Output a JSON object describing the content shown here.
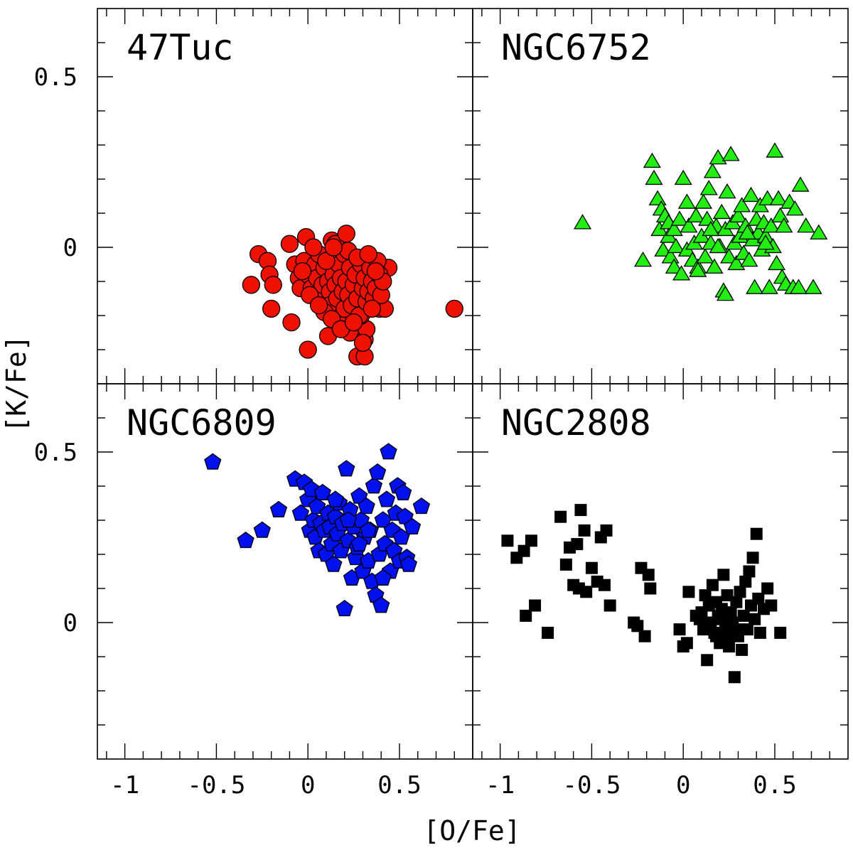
{
  "figure": {
    "xlabel": "[O/Fe]",
    "ylabel": "[K/Fe]"
  },
  "chart_data": [
    {
      "type": "scatter",
      "title": "47Tuc",
      "xlabel": "[O/Fe]",
      "ylabel": "[K/Fe]",
      "xlim": [
        -1.15,
        0.9
      ],
      "ylim": [
        -0.4,
        0.7
      ],
      "xticks": [
        "-1",
        "-0.5",
        "0",
        "0.5"
      ],
      "yticks": [
        "0",
        "0.5"
      ],
      "marker": "circle",
      "color": "#ee1100",
      "points": [
        [
          -0.27,
          -0.02
        ],
        [
          -0.31,
          -0.11
        ],
        [
          -0.22,
          -0.04
        ],
        [
          -0.21,
          -0.08
        ],
        [
          -0.19,
          -0.11
        ],
        [
          -0.2,
          -0.18
        ],
        [
          -0.1,
          0.01
        ],
        [
          -0.09,
          -0.22
        ],
        [
          -0.01,
          0.03
        ],
        [
          0.0,
          -0.3
        ],
        [
          0.13,
          0.02
        ],
        [
          0.15,
          0.01
        ],
        [
          0.21,
          0.04
        ],
        [
          0.8,
          -0.18
        ],
        [
          0.11,
          -0.26
        ],
        [
          0.23,
          -0.25
        ],
        [
          0.27,
          -0.32
        ],
        [
          0.31,
          -0.32
        ],
        [
          0.31,
          -0.27
        ],
        [
          0.32,
          -0.24
        ],
        [
          0.29,
          -0.2
        ],
        [
          0.39,
          -0.18
        ],
        [
          0.42,
          -0.18
        ],
        [
          0.44,
          -0.06
        ],
        [
          -0.07,
          -0.05
        ],
        [
          -0.05,
          -0.09
        ],
        [
          -0.04,
          -0.12
        ],
        [
          -0.02,
          -0.04
        ],
        [
          0.0,
          -0.08
        ],
        [
          0.02,
          -0.12
        ],
        [
          0.04,
          -0.05
        ],
        [
          0.05,
          -0.09
        ],
        [
          0.07,
          -0.15
        ],
        [
          0.08,
          -0.11
        ],
        [
          0.09,
          -0.06
        ],
        [
          0.11,
          -0.1
        ],
        [
          0.12,
          -0.13
        ],
        [
          0.12,
          -0.17
        ],
        [
          0.14,
          -0.08
        ],
        [
          0.15,
          -0.11
        ],
        [
          0.16,
          -0.15
        ],
        [
          0.16,
          -0.21
        ],
        [
          0.17,
          -0.05
        ],
        [
          0.18,
          -0.09
        ],
        [
          0.19,
          -0.13
        ],
        [
          0.2,
          -0.18
        ],
        [
          0.2,
          -0.02
        ],
        [
          0.21,
          -0.1
        ],
        [
          0.22,
          -0.14
        ],
        [
          0.23,
          -0.06
        ],
        [
          0.24,
          -0.17
        ],
        [
          0.25,
          -0.11
        ],
        [
          0.26,
          -0.08
        ],
        [
          0.27,
          -0.15
        ],
        [
          0.28,
          -0.2
        ],
        [
          0.29,
          -0.05
        ],
        [
          0.3,
          -0.12
        ],
        [
          0.31,
          -0.09
        ],
        [
          0.32,
          -0.16
        ],
        [
          0.33,
          -0.13
        ],
        [
          0.34,
          -0.06
        ],
        [
          0.35,
          -0.1
        ],
        [
          0.36,
          -0.15
        ],
        [
          0.37,
          -0.12
        ],
        [
          0.38,
          -0.04
        ],
        [
          0.39,
          -0.08
        ],
        [
          0.4,
          -0.14
        ],
        [
          0.41,
          -0.1
        ],
        [
          0.06,
          -0.02
        ],
        [
          0.03,
          0.0
        ],
        [
          0.09,
          -0.19
        ],
        [
          0.13,
          -0.21
        ],
        [
          0.18,
          -0.24
        ],
        [
          0.25,
          -0.22
        ],
        [
          0.3,
          -0.28
        ],
        [
          0.1,
          -0.04
        ],
        [
          0.22,
          -0.01
        ],
        [
          0.27,
          -0.03
        ],
        [
          0.33,
          -0.02
        ],
        [
          0.14,
          0.0
        ],
        [
          -0.03,
          -0.07
        ],
        [
          0.01,
          -0.14
        ],
        [
          0.06,
          -0.17
        ],
        [
          0.35,
          -0.18
        ],
        [
          0.37,
          -0.07
        ]
      ]
    },
    {
      "type": "scatter",
      "title": "NGC6752",
      "xlabel": "[O/Fe]",
      "ylabel": "[K/Fe]",
      "xlim": [
        -1.15,
        0.9
      ],
      "ylim": [
        -0.4,
        0.7
      ],
      "xticks": [
        "-1",
        "-0.5",
        "0",
        "0.5"
      ],
      "yticks": [
        "0",
        "0.5"
      ],
      "marker": "triangle",
      "color": "#22ee11",
      "points": [
        [
          -0.55,
          0.07
        ],
        [
          -0.22,
          -0.04
        ],
        [
          -0.17,
          0.25
        ],
        [
          -0.16,
          0.2
        ],
        [
          -0.14,
          0.14
        ],
        [
          -0.12,
          0.11
        ],
        [
          -0.13,
          0.05
        ],
        [
          -0.1,
          0.09
        ],
        [
          -0.11,
          -0.01
        ],
        [
          -0.08,
          0.07
        ],
        [
          -0.08,
          0.03
        ],
        [
          -0.07,
          -0.03
        ],
        [
          -0.05,
          0.05
        ],
        [
          -0.04,
          0.0
        ],
        [
          -0.05,
          -0.06
        ],
        [
          -0.02,
          0.08
        ],
        [
          0.0,
          0.2
        ],
        [
          -0.01,
          -0.08
        ],
        [
          0.02,
          0.13
        ],
        [
          0.02,
          -0.01
        ],
        [
          0.03,
          0.06
        ],
        [
          0.05,
          -0.04
        ],
        [
          0.06,
          0.01
        ],
        [
          0.07,
          0.09
        ],
        [
          0.08,
          -0.06
        ],
        [
          0.1,
          0.03
        ],
        [
          0.11,
          0.13
        ],
        [
          0.12,
          -0.03
        ],
        [
          0.13,
          0.08
        ],
        [
          0.14,
          0.17
        ],
        [
          0.15,
          0.01
        ],
        [
          0.16,
          0.22
        ],
        [
          0.17,
          -0.06
        ],
        [
          0.18,
          0.06
        ],
        [
          0.19,
          0.26
        ],
        [
          0.2,
          0.0
        ],
        [
          0.21,
          0.1
        ],
        [
          0.22,
          -0.13
        ],
        [
          0.23,
          0.05
        ],
        [
          0.24,
          0.16
        ],
        [
          0.25,
          -0.03
        ],
        [
          0.26,
          0.27
        ],
        [
          0.27,
          0.07
        ],
        [
          0.28,
          0.01
        ],
        [
          0.29,
          -0.05
        ],
        [
          0.3,
          0.09
        ],
        [
          0.31,
          0.03
        ],
        [
          0.32,
          0.12
        ],
        [
          0.33,
          -0.02
        ],
        [
          0.34,
          0.06
        ],
        [
          0.36,
          -0.04
        ],
        [
          0.37,
          0.15
        ],
        [
          0.38,
          0.02
        ],
        [
          0.39,
          -0.12
        ],
        [
          0.4,
          0.08
        ],
        [
          0.41,
          0.04
        ],
        [
          0.42,
          0.12
        ],
        [
          0.43,
          -0.01
        ],
        [
          0.44,
          0.07
        ],
        [
          0.45,
          0.03
        ],
        [
          0.46,
          0.14
        ],
        [
          0.47,
          -0.12
        ],
        [
          0.48,
          0.06
        ],
        [
          0.49,
          0.0
        ],
        [
          0.5,
          0.28
        ],
        [
          0.51,
          -0.05
        ],
        [
          0.52,
          0.14
        ],
        [
          0.53,
          0.09
        ],
        [
          0.54,
          -0.09
        ],
        [
          0.55,
          0.06
        ],
        [
          0.56,
          -0.11
        ],
        [
          0.58,
          0.13
        ],
        [
          0.6,
          -0.12
        ],
        [
          0.61,
          0.11
        ],
        [
          0.63,
          -0.12
        ],
        [
          0.64,
          0.18
        ],
        [
          0.67,
          0.06
        ],
        [
          0.71,
          -0.12
        ],
        [
          0.74,
          0.04
        ],
        [
          0.23,
          -0.14
        ],
        [
          0.15,
          0.05
        ],
        [
          0.08,
          -0.07
        ],
        [
          0.35,
          0.04
        ],
        [
          0.45,
          0.01
        ],
        [
          0.19,
          0.0
        ]
      ]
    },
    {
      "type": "scatter",
      "title": "NGC6809",
      "xlabel": "[O/Fe]",
      "ylabel": "[K/Fe]",
      "xlim": [
        -1.15,
        0.9
      ],
      "ylim": [
        -0.4,
        0.7
      ],
      "xticks": [
        "-1",
        "-0.5",
        "0",
        "0.5"
      ],
      "yticks": [
        "0",
        "0.5"
      ],
      "marker": "pentagon",
      "color": "#0011ee",
      "points": [
        [
          -0.52,
          0.47
        ],
        [
          -0.34,
          0.24
        ],
        [
          -0.25,
          0.27
        ],
        [
          -0.16,
          0.33
        ],
        [
          -0.07,
          0.42
        ],
        [
          -0.04,
          0.32
        ],
        [
          -0.02,
          0.41
        ],
        [
          0.0,
          0.36
        ],
        [
          0.01,
          0.27
        ],
        [
          0.02,
          0.39
        ],
        [
          0.03,
          0.3
        ],
        [
          0.04,
          0.25
        ],
        [
          0.05,
          0.34
        ],
        [
          0.06,
          0.21
        ],
        [
          0.07,
          0.29
        ],
        [
          0.08,
          0.38
        ],
        [
          0.09,
          0.27
        ],
        [
          0.1,
          0.2
        ],
        [
          0.11,
          0.32
        ],
        [
          0.12,
          0.28
        ],
        [
          0.13,
          0.23
        ],
        [
          0.14,
          0.17
        ],
        [
          0.15,
          0.31
        ],
        [
          0.16,
          0.26
        ],
        [
          0.17,
          0.35
        ],
        [
          0.18,
          0.21
        ],
        [
          0.19,
          0.29
        ],
        [
          0.2,
          0.04
        ],
        [
          0.21,
          0.45
        ],
        [
          0.22,
          0.24
        ],
        [
          0.23,
          0.33
        ],
        [
          0.24,
          0.13
        ],
        [
          0.25,
          0.28
        ],
        [
          0.26,
          0.19
        ],
        [
          0.27,
          0.22
        ],
        [
          0.28,
          0.37
        ],
        [
          0.29,
          0.3
        ],
        [
          0.3,
          0.15
        ],
        [
          0.31,
          0.25
        ],
        [
          0.32,
          0.34
        ],
        [
          0.33,
          0.18
        ],
        [
          0.34,
          0.27
        ],
        [
          0.35,
          0.12
        ],
        [
          0.36,
          0.4
        ],
        [
          0.37,
          0.08
        ],
        [
          0.38,
          0.44
        ],
        [
          0.39,
          0.2
        ],
        [
          0.4,
          0.05
        ],
        [
          0.41,
          0.3
        ],
        [
          0.42,
          0.23
        ],
        [
          0.43,
          0.36
        ],
        [
          0.44,
          0.5
        ],
        [
          0.45,
          0.15
        ],
        [
          0.46,
          0.27
        ],
        [
          0.47,
          0.21
        ],
        [
          0.48,
          0.32
        ],
        [
          0.49,
          0.4
        ],
        [
          0.5,
          0.18
        ],
        [
          0.51,
          0.25
        ],
        [
          0.52,
          0.38
        ],
        [
          0.53,
          0.31
        ],
        [
          0.54,
          0.19
        ],
        [
          0.55,
          0.17
        ],
        [
          0.57,
          0.28
        ],
        [
          0.62,
          0.34
        ],
        [
          0.28,
          0.23
        ],
        [
          0.15,
          0.36
        ],
        [
          0.22,
          0.3
        ],
        [
          0.33,
          0.27
        ],
        [
          0.41,
          0.13
        ]
      ]
    },
    {
      "type": "scatter",
      "title": "NGC2808",
      "xlabel": "[O/Fe]",
      "ylabel": "[K/Fe]",
      "xlim": [
        -1.15,
        0.9
      ],
      "ylim": [
        -0.4,
        0.7
      ],
      "xticks": [
        "-1",
        "-0.5",
        "0",
        "0.5"
      ],
      "yticks": [
        "0",
        "0.5"
      ],
      "marker": "square",
      "color": "#000000",
      "points": [
        [
          -0.96,
          0.24
        ],
        [
          -0.91,
          0.19
        ],
        [
          -0.87,
          0.21
        ],
        [
          -0.83,
          0.24
        ],
        [
          -0.86,
          0.02
        ],
        [
          -0.81,
          0.05
        ],
        [
          -0.74,
          -0.03
        ],
        [
          -0.67,
          0.31
        ],
        [
          -0.64,
          0.17
        ],
        [
          -0.62,
          0.22
        ],
        [
          -0.58,
          0.23
        ],
        [
          -0.56,
          0.33
        ],
        [
          -0.54,
          0.27
        ],
        [
          -0.6,
          0.11
        ],
        [
          -0.57,
          0.1
        ],
        [
          -0.53,
          0.09
        ],
        [
          -0.5,
          0.16
        ],
        [
          -0.47,
          0.12
        ],
        [
          -0.45,
          0.25
        ],
        [
          -0.42,
          0.27
        ],
        [
          -0.43,
          0.11
        ],
        [
          -0.4,
          0.05
        ],
        [
          -0.27,
          0.0
        ],
        [
          -0.25,
          -0.01
        ],
        [
          -0.23,
          0.16
        ],
        [
          -0.21,
          -0.04
        ],
        [
          -0.19,
          0.14
        ],
        [
          -0.18,
          0.1
        ],
        [
          -0.02,
          -0.02
        ],
        [
          0.0,
          -0.07
        ],
        [
          0.02,
          -0.06
        ],
        [
          0.03,
          0.09
        ],
        [
          0.07,
          0.02
        ],
        [
          0.09,
          0.01
        ],
        [
          0.1,
          0.03
        ],
        [
          0.11,
          -0.02
        ],
        [
          0.12,
          0.08
        ],
        [
          0.13,
          -0.11
        ],
        [
          0.14,
          0.05
        ],
        [
          0.15,
          0.0
        ],
        [
          0.16,
          0.11
        ],
        [
          0.17,
          -0.03
        ],
        [
          0.18,
          0.06
        ],
        [
          0.19,
          0.02
        ],
        [
          0.2,
          -0.06
        ],
        [
          0.21,
          0.04
        ],
        [
          0.22,
          0.14
        ],
        [
          0.23,
          -0.01
        ],
        [
          0.24,
          0.08
        ],
        [
          0.25,
          -0.07
        ],
        [
          0.26,
          0.03
        ],
        [
          0.27,
          0.0
        ],
        [
          0.28,
          -0.16
        ],
        [
          0.29,
          0.06
        ],
        [
          0.3,
          -0.04
        ],
        [
          0.31,
          0.09
        ],
        [
          0.32,
          -0.08
        ],
        [
          0.33,
          0.02
        ],
        [
          0.34,
          0.12
        ],
        [
          0.35,
          -0.02
        ],
        [
          0.36,
          0.15
        ],
        [
          0.37,
          0.05
        ],
        [
          0.38,
          0.19
        ],
        [
          0.39,
          0.01
        ],
        [
          0.4,
          0.26
        ],
        [
          0.41,
          0.07
        ],
        [
          0.42,
          -0.03
        ],
        [
          0.44,
          0.04
        ],
        [
          0.46,
          0.1
        ],
        [
          0.48,
          0.05
        ],
        [
          0.53,
          -0.03
        ],
        [
          0.18,
          -0.04
        ],
        [
          0.24,
          -0.04
        ],
        [
          0.29,
          -0.02
        ],
        [
          0.21,
          0.01
        ]
      ]
    }
  ]
}
